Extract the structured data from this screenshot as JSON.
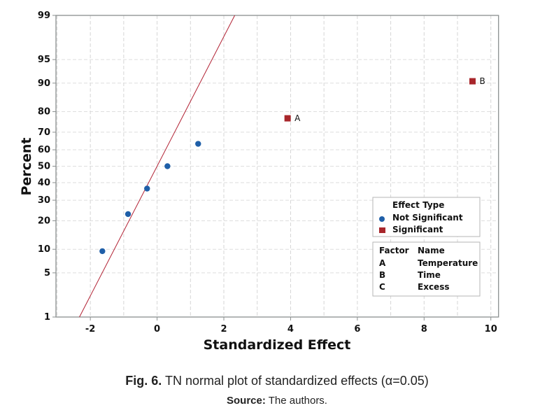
{
  "chart_data": {
    "type": "scatter",
    "subtype": "normal probability plot",
    "xlabel": "Standardized Effect",
    "ylabel": "Percent",
    "xlim": [
      -3.03,
      10.23
    ],
    "ylim": [
      1,
      99
    ],
    "y_scale": "normal probability",
    "xticks": [
      -2,
      0,
      2,
      4,
      6,
      8,
      10
    ],
    "yticks": [
      1,
      5,
      10,
      20,
      30,
      40,
      50,
      60,
      70,
      80,
      90,
      95,
      99
    ],
    "grid": true,
    "reference_line": {
      "mean": 0,
      "sd": 1,
      "color": "#b22234"
    },
    "points": [
      {
        "x": -1.64,
        "y": 9.5,
        "type": "Not Significant",
        "label": ""
      },
      {
        "x": -0.87,
        "y": 23.0,
        "type": "Not Significant",
        "label": ""
      },
      {
        "x": -0.3,
        "y": 36.5,
        "type": "Not Significant",
        "label": ""
      },
      {
        "x": 0.31,
        "y": 50.0,
        "type": "Not Significant",
        "label": ""
      },
      {
        "x": 1.23,
        "y": 63.5,
        "type": "Not Significant",
        "label": ""
      },
      {
        "x": 3.91,
        "y": 77.0,
        "type": "Significant",
        "label": "A"
      },
      {
        "x": 9.45,
        "y": 90.5,
        "type": "Significant",
        "label": "B"
      }
    ],
    "legend": {
      "placement": "bottom-right",
      "title": "Effect Type",
      "entries": [
        {
          "name": "Not Significant",
          "color": "#1f5fa8",
          "marker": "circle"
        },
        {
          "name": "Significant",
          "color": "#a8262b",
          "marker": "square"
        }
      ]
    },
    "factor_table": {
      "headers": [
        "Factor",
        "Name"
      ],
      "rows": [
        [
          "A",
          "Temperature"
        ],
        [
          "B",
          "Time"
        ],
        [
          "C",
          "Excess"
        ]
      ]
    }
  },
  "caption": {
    "fig_label": "Fig. 6.",
    "text": "TN normal plot of standardized effects (α=0.05)",
    "source_label": "Source:",
    "source_text": "The authors."
  }
}
